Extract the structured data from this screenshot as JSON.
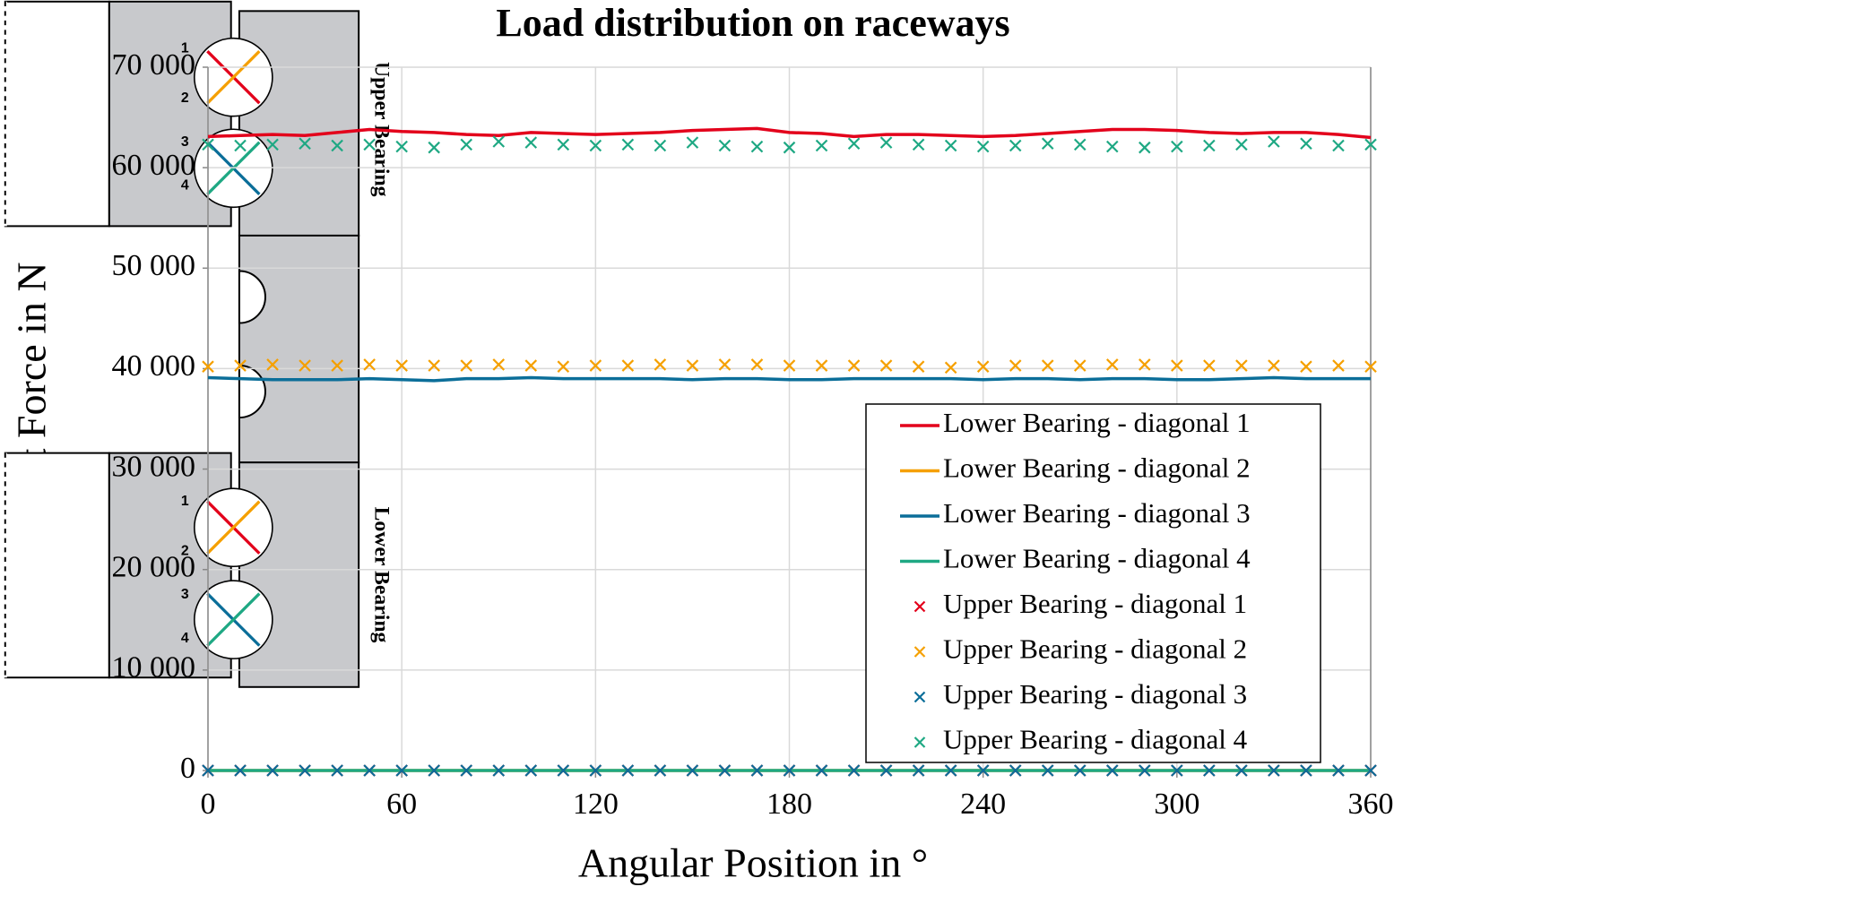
{
  "chart_data": {
    "type": "line",
    "title": "Load distribution on raceways",
    "x_label": "Angular Position in °",
    "y_label": "Contact Force in N",
    "x": [
      0,
      10,
      20,
      30,
      40,
      50,
      60,
      70,
      80,
      90,
      100,
      110,
      120,
      130,
      140,
      150,
      160,
      170,
      180,
      190,
      200,
      210,
      220,
      230,
      240,
      250,
      260,
      270,
      280,
      290,
      300,
      310,
      320,
      330,
      340,
      350,
      360
    ],
    "xlim": [
      0,
      360
    ],
    "xticks": [
      0,
      60,
      120,
      180,
      240,
      300,
      360
    ],
    "ylim": [
      0,
      70000
    ],
    "yticks": [
      {
        "value": 0,
        "label": "0"
      },
      {
        "value": 10000,
        "label": "10 000"
      },
      {
        "value": 20000,
        "label": "20 000"
      },
      {
        "value": 30000,
        "label": "30 000"
      },
      {
        "value": 40000,
        "label": "40 000"
      },
      {
        "value": 50000,
        "label": "50 000"
      },
      {
        "value": 60000,
        "label": "60 000"
      },
      {
        "value": 70000,
        "label": "70 000"
      }
    ],
    "grid": true,
    "legend": "lower-right",
    "series": [
      {
        "name": "Lower Bearing - diagonal 1",
        "color": "#e3001b",
        "style": "line",
        "values": [
          63100,
          63200,
          63300,
          63200,
          63500,
          63800,
          63600,
          63500,
          63300,
          63200,
          63500,
          63400,
          63300,
          63400,
          63500,
          63700,
          63800,
          63900,
          63500,
          63400,
          63100,
          63300,
          63300,
          63200,
          63100,
          63200,
          63400,
          63600,
          63800,
          63800,
          63700,
          63500,
          63400,
          63500,
          63500,
          63300,
          63000
        ]
      },
      {
        "name": "Lower Bearing - diagonal 2",
        "color": "#f5a000",
        "style": "line",
        "values": [
          0,
          0,
          0,
          0,
          0,
          0,
          0,
          0,
          0,
          0,
          0,
          0,
          0,
          0,
          0,
          0,
          0,
          0,
          0,
          0,
          0,
          0,
          0,
          0,
          0,
          0,
          0,
          0,
          0,
          0,
          0,
          0,
          0,
          0,
          0,
          0,
          0
        ]
      },
      {
        "name": "Lower Bearing - diagonal 3",
        "color": "#0b6e99",
        "style": "line",
        "values": [
          39100,
          39000,
          38900,
          38900,
          38900,
          39000,
          38900,
          38800,
          39000,
          39000,
          39100,
          39000,
          39000,
          39000,
          39000,
          38900,
          39000,
          39000,
          38900,
          38900,
          39000,
          39000,
          39000,
          39000,
          38900,
          39000,
          39000,
          38900,
          39000,
          39000,
          38900,
          38900,
          39000,
          39100,
          39000,
          39000,
          39000
        ]
      },
      {
        "name": "Lower Bearing - diagonal 4",
        "color": "#1ea883",
        "style": "line",
        "values": [
          0,
          0,
          0,
          0,
          0,
          0,
          0,
          0,
          0,
          0,
          0,
          0,
          0,
          0,
          0,
          0,
          0,
          0,
          0,
          0,
          0,
          0,
          0,
          0,
          0,
          0,
          0,
          0,
          0,
          0,
          0,
          0,
          0,
          0,
          0,
          0,
          0
        ]
      },
      {
        "name": "Upper Bearing - diagonal 1",
        "color": "#e3001b",
        "style": "marker",
        "values": [
          0,
          0,
          0,
          0,
          0,
          0,
          0,
          0,
          0,
          0,
          0,
          0,
          0,
          0,
          0,
          0,
          0,
          0,
          0,
          0,
          0,
          0,
          0,
          0,
          0,
          0,
          0,
          0,
          0,
          0,
          0,
          0,
          0,
          0,
          0,
          0,
          0
        ]
      },
      {
        "name": "Upper Bearing - diagonal 2",
        "color": "#f5a000",
        "style": "marker",
        "values": [
          40200,
          40300,
          40400,
          40300,
          40300,
          40400,
          40300,
          40300,
          40300,
          40400,
          40300,
          40200,
          40300,
          40300,
          40400,
          40300,
          40400,
          40400,
          40300,
          40300,
          40300,
          40300,
          40200,
          40100,
          40200,
          40300,
          40300,
          40300,
          40400,
          40400,
          40300,
          40300,
          40300,
          40300,
          40200,
          40300,
          40200
        ]
      },
      {
        "name": "Upper Bearing - diagonal 3",
        "color": "#0b6e99",
        "style": "marker",
        "values": [
          0,
          0,
          0,
          0,
          0,
          0,
          0,
          0,
          0,
          0,
          0,
          0,
          0,
          0,
          0,
          0,
          0,
          0,
          0,
          0,
          0,
          0,
          0,
          0,
          0,
          0,
          0,
          0,
          0,
          0,
          0,
          0,
          0,
          0,
          0,
          0,
          0
        ]
      },
      {
        "name": "Upper Bearing - diagonal 4",
        "color": "#1ea883",
        "style": "marker",
        "values": [
          62300,
          62200,
          62300,
          62400,
          62200,
          62300,
          62100,
          62000,
          62300,
          62600,
          62500,
          62300,
          62200,
          62300,
          62200,
          62500,
          62200,
          62100,
          62000,
          62200,
          62400,
          62500,
          62300,
          62200,
          62100,
          62200,
          62400,
          62300,
          62100,
          62000,
          62100,
          62200,
          62300,
          62600,
          62400,
          62200,
          62300
        ]
      }
    ]
  },
  "diagram": {
    "upper": {
      "label": "Upper Bearing",
      "numbers": [
        "1",
        "2",
        "3",
        "4"
      ]
    },
    "lower": {
      "label": "Lower Bearing",
      "numbers": [
        "1",
        "2",
        "3",
        "4"
      ]
    }
  }
}
